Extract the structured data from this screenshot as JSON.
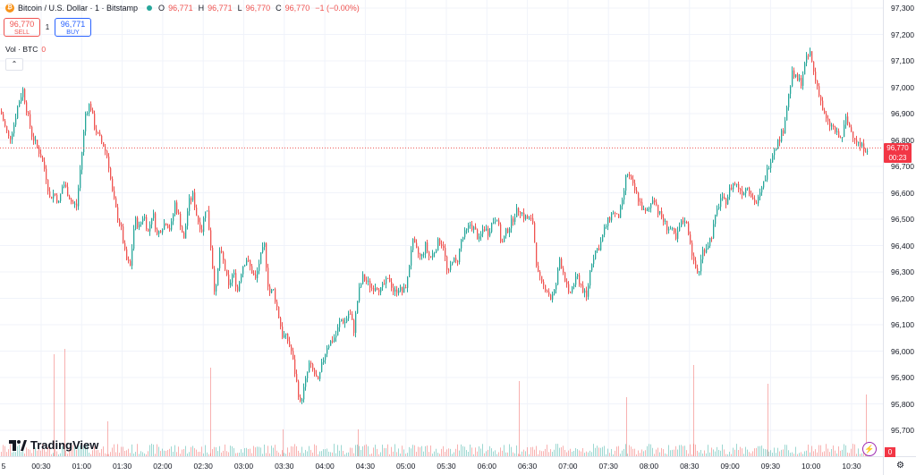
{
  "legend": {
    "symbol_icon": "bitcoin-icon",
    "title": "Bitcoin / U.S. Dollar · 1 · Bitstamp",
    "o_label": "O",
    "o_value": "96,771",
    "h_label": "H",
    "h_value": "96,771",
    "l_label": "L",
    "l_value": "96,770",
    "c_label": "C",
    "c_value": "96,770",
    "change": "−1 (−0.00%)"
  },
  "trade": {
    "sell_price": "96,770",
    "sell_label": "SELL",
    "spread": "1",
    "buy_price": "96,771",
    "buy_label": "BUY"
  },
  "volume": {
    "label": "Vol · BTC",
    "value": "0"
  },
  "current_price": {
    "price": "96,770",
    "countdown": "00:23",
    "volume_badge": "0"
  },
  "logo": "TradingView",
  "colors": {
    "up": "#26a69a",
    "down": "#ef5350",
    "accent": "#2962ff",
    "tag": "#f23645"
  },
  "chart_data": {
    "type": "candlestick",
    "interval": "1",
    "y_ticks": [
      "97,300",
      "97,200",
      "97,100",
      "97,000",
      "96,900",
      "96,800",
      "96,700",
      "96,600",
      "96,500",
      "96,400",
      "96,300",
      "96,200",
      "96,100",
      "96,000",
      "95,900",
      "95,800",
      "95,700"
    ],
    "x_ticks": [
      "5",
      "00:30",
      "01:00",
      "01:30",
      "02:00",
      "02:30",
      "03:00",
      "03:30",
      "04:00",
      "04:30",
      "05:00",
      "05:30",
      "06:00",
      "06:30",
      "07:00",
      "07:30",
      "08:00",
      "08:30",
      "09:00",
      "09:30",
      "10:00",
      "10:30"
    ],
    "ylim": [
      95640,
      97320
    ],
    "close_path": [
      [
        0,
        96910
      ],
      [
        5,
        96850
      ],
      [
        10,
        96800
      ],
      [
        15,
        96860
      ],
      [
        20,
        96940
      ],
      [
        25,
        96990
      ],
      [
        30,
        96900
      ],
      [
        35,
        96820
      ],
      [
        40,
        96780
      ],
      [
        45,
        96740
      ],
      [
        50,
        96680
      ],
      [
        55,
        96580
      ],
      [
        60,
        96600
      ],
      [
        65,
        96560
      ],
      [
        70,
        96640
      ],
      [
        75,
        96600
      ],
      [
        80,
        96560
      ],
      [
        85,
        96550
      ],
      [
        90,
        96720
      ],
      [
        95,
        96900
      ],
      [
        100,
        96940
      ],
      [
        105,
        96850
      ],
      [
        110,
        96810
      ],
      [
        115,
        96780
      ],
      [
        120,
        96730
      ],
      [
        125,
        96600
      ],
      [
        130,
        96520
      ],
      [
        135,
        96460
      ],
      [
        140,
        96350
      ],
      [
        145,
        96320
      ],
      [
        150,
        96500
      ],
      [
        155,
        96470
      ],
      [
        160,
        96520
      ],
      [
        165,
        96450
      ],
      [
        170,
        96530
      ],
      [
        175,
        96440
      ],
      [
        180,
        96470
      ],
      [
        185,
        96490
      ],
      [
        190,
        96460
      ],
      [
        195,
        96560
      ],
      [
        200,
        96500
      ],
      [
        205,
        96420
      ],
      [
        210,
        96560
      ],
      [
        215,
        96590
      ],
      [
        220,
        96500
      ],
      [
        225,
        96460
      ],
      [
        230,
        96560
      ],
      [
        235,
        96400
      ],
      [
        240,
        96200
      ],
      [
        245,
        96380
      ],
      [
        250,
        96330
      ],
      [
        255,
        96240
      ],
      [
        260,
        96300
      ],
      [
        265,
        96230
      ],
      [
        270,
        96320
      ],
      [
        275,
        96350
      ],
      [
        280,
        96310
      ],
      [
        285,
        96270
      ],
      [
        290,
        96350
      ],
      [
        295,
        96400
      ],
      [
        300,
        96220
      ],
      [
        305,
        96230
      ],
      [
        310,
        96150
      ],
      [
        315,
        96060
      ],
      [
        320,
        96050
      ],
      [
        325,
        96000
      ],
      [
        330,
        95900
      ],
      [
        335,
        95800
      ],
      [
        340,
        95870
      ],
      [
        345,
        95950
      ],
      [
        350,
        95920
      ],
      [
        355,
        95880
      ],
      [
        360,
        95960
      ],
      [
        365,
        96020
      ],
      [
        370,
        96040
      ],
      [
        375,
        96060
      ],
      [
        380,
        96120
      ],
      [
        385,
        96110
      ],
      [
        390,
        96150
      ],
      [
        395,
        96080
      ],
      [
        400,
        96220
      ],
      [
        405,
        96280
      ],
      [
        410,
        96260
      ],
      [
        415,
        96240
      ],
      [
        420,
        96250
      ],
      [
        425,
        96230
      ],
      [
        430,
        96260
      ],
      [
        435,
        96270
      ],
      [
        440,
        96220
      ],
      [
        445,
        96240
      ],
      [
        450,
        96220
      ],
      [
        455,
        96270
      ],
      [
        460,
        96420
      ],
      [
        465,
        96380
      ],
      [
        470,
        96350
      ],
      [
        475,
        96400
      ],
      [
        480,
        96350
      ],
      [
        485,
        96380
      ],
      [
        490,
        96420
      ],
      [
        495,
        96400
      ],
      [
        500,
        96280
      ],
      [
        505,
        96350
      ],
      [
        510,
        96330
      ],
      [
        515,
        96420
      ],
      [
        520,
        96450
      ],
      [
        525,
        96480
      ],
      [
        530,
        96460
      ],
      [
        535,
        96420
      ],
      [
        540,
        96470
      ],
      [
        545,
        96450
      ],
      [
        550,
        96490
      ],
      [
        555,
        96510
      ],
      [
        560,
        96400
      ],
      [
        565,
        96450
      ],
      [
        570,
        96480
      ],
      [
        575,
        96520
      ],
      [
        580,
        96540
      ],
      [
        585,
        96510
      ],
      [
        590,
        96500
      ],
      [
        595,
        96490
      ],
      [
        600,
        96300
      ],
      [
        605,
        96250
      ],
      [
        610,
        96240
      ],
      [
        615,
        96200
      ],
      [
        620,
        96230
      ],
      [
        625,
        96350
      ],
      [
        630,
        96290
      ],
      [
        635,
        96210
      ],
      [
        640,
        96250
      ],
      [
        645,
        96280
      ],
      [
        650,
        96240
      ],
      [
        655,
        96200
      ],
      [
        660,
        96330
      ],
      [
        665,
        96380
      ],
      [
        670,
        96400
      ],
      [
        675,
        96460
      ],
      [
        680,
        96500
      ],
      [
        685,
        96530
      ],
      [
        690,
        96500
      ],
      [
        695,
        96560
      ],
      [
        700,
        96680
      ],
      [
        705,
        96640
      ],
      [
        710,
        96600
      ],
      [
        715,
        96560
      ],
      [
        720,
        96520
      ],
      [
        725,
        96540
      ],
      [
        730,
        96590
      ],
      [
        735,
        96530
      ],
      [
        740,
        96500
      ],
      [
        745,
        96470
      ],
      [
        750,
        96460
      ],
      [
        755,
        96420
      ],
      [
        760,
        96480
      ],
      [
        765,
        96500
      ],
      [
        770,
        96440
      ],
      [
        775,
        96330
      ],
      [
        780,
        96290
      ],
      [
        785,
        96380
      ],
      [
        790,
        96400
      ],
      [
        795,
        96440
      ],
      [
        800,
        96520
      ],
      [
        805,
        96580
      ],
      [
        810,
        96560
      ],
      [
        815,
        96610
      ],
      [
        820,
        96640
      ],
      [
        825,
        96620
      ],
      [
        830,
        96600
      ],
      [
        835,
        96630
      ],
      [
        840,
        96580
      ],
      [
        845,
        96560
      ],
      [
        850,
        96600
      ],
      [
        855,
        96660
      ],
      [
        860,
        96720
      ],
      [
        865,
        96770
      ],
      [
        870,
        96800
      ],
      [
        875,
        96840
      ],
      [
        880,
        96950
      ],
      [
        885,
        97050
      ],
      [
        890,
        97030
      ],
      [
        895,
        97020
      ],
      [
        900,
        97100
      ],
      [
        905,
        97130
      ],
      [
        910,
        97040
      ],
      [
        915,
        96980
      ],
      [
        920,
        96900
      ],
      [
        925,
        96860
      ],
      [
        930,
        96850
      ],
      [
        935,
        96820
      ],
      [
        940,
        96800
      ],
      [
        945,
        96880
      ],
      [
        950,
        96840
      ],
      [
        955,
        96810
      ],
      [
        960,
        96780
      ],
      [
        965,
        96770
      ],
      [
        970,
        96770
      ]
    ],
    "volume_spikes": [
      [
        60,
        0.38
      ],
      [
        72,
        0.4
      ],
      [
        120,
        0.13
      ],
      [
        235,
        0.33
      ],
      [
        316,
        0.1
      ],
      [
        400,
        0.1
      ],
      [
        580,
        0.28
      ],
      [
        700,
        0.22
      ],
      [
        775,
        0.34
      ],
      [
        858,
        0.27
      ],
      [
        968,
        0.23
      ]
    ],
    "current_value": 96770
  }
}
